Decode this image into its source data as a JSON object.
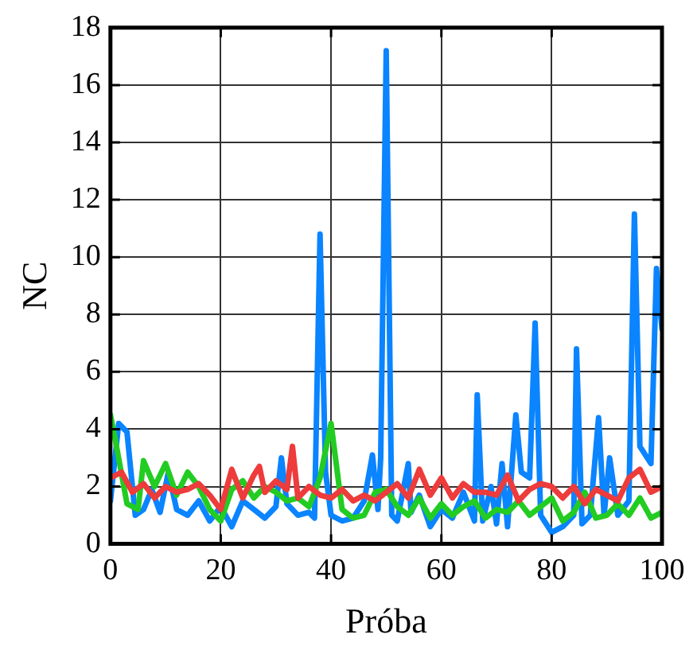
{
  "chart_data": {
    "type": "line",
    "xlabel": "Próba",
    "ylabel": "NC",
    "xlim": [
      0,
      100
    ],
    "ylim": [
      0,
      18
    ],
    "xticks": [
      0,
      20,
      40,
      60,
      80,
      100
    ],
    "yticks": [
      0,
      2,
      4,
      6,
      8,
      10,
      12,
      14,
      16,
      18
    ],
    "grid": true,
    "legend": false,
    "marker": "none",
    "line_style": "solid",
    "series": [
      {
        "color": "#ee3b3b",
        "x": [
          0,
          2,
          4,
          6,
          8,
          10,
          12,
          14,
          16,
          18,
          20,
          22,
          24,
          26,
          27,
          28,
          30,
          32,
          33,
          34,
          36,
          38,
          40,
          42,
          44,
          46,
          48,
          50,
          52,
          54,
          56,
          58,
          60,
          62,
          64,
          66,
          68,
          70,
          72,
          74,
          76,
          78,
          80,
          82,
          84,
          86,
          88,
          90,
          92,
          94,
          96,
          98,
          100
        ],
        "values": [
          2.3,
          2.5,
          1.8,
          2.1,
          1.6,
          2.0,
          1.8,
          1.9,
          2.1,
          1.7,
          1.2,
          2.6,
          1.6,
          2.4,
          2.7,
          1.8,
          2.2,
          1.9,
          3.4,
          1.6,
          2.0,
          1.7,
          1.6,
          1.9,
          1.5,
          1.7,
          1.5,
          1.8,
          2.1,
          1.6,
          2.6,
          1.7,
          2.3,
          1.6,
          2.1,
          1.8,
          1.8,
          1.7,
          2.4,
          1.5,
          1.9,
          2.1,
          2.0,
          1.6,
          2.0,
          1.4,
          1.9,
          1.7,
          1.5,
          2.3,
          2.6,
          1.8,
          2.0
        ]
      },
      {
        "color": "#22cc22",
        "x": [
          0,
          1,
          3,
          5,
          6,
          8,
          10,
          12,
          14,
          16,
          18,
          20,
          22,
          24,
          26,
          28,
          30,
          32,
          34,
          36,
          38,
          40,
          42,
          44,
          46,
          48,
          50,
          52,
          54,
          56,
          58,
          60,
          62,
          64,
          66,
          68,
          70,
          72,
          74,
          76,
          78,
          80,
          82,
          84,
          86,
          88,
          90,
          92,
          94,
          96,
          98,
          100
        ],
        "values": [
          4.5,
          3.5,
          1.4,
          1.2,
          2.9,
          2.0,
          2.8,
          1.7,
          2.5,
          2.0,
          1.2,
          0.8,
          1.9,
          2.2,
          1.6,
          2.0,
          1.8,
          1.5,
          1.6,
          1.3,
          2.3,
          4.2,
          1.2,
          0.9,
          1.0,
          1.8,
          1.9,
          1.3,
          1.0,
          1.6,
          0.9,
          1.4,
          1.0,
          1.3,
          1.5,
          0.9,
          1.2,
          1.1,
          1.5,
          1.0,
          1.3,
          1.6,
          0.8,
          1.1,
          1.8,
          0.9,
          1.0,
          1.4,
          1.0,
          1.6,
          0.9,
          1.1
        ]
      },
      {
        "color": "#0a84ff",
        "x": [
          0,
          1.5,
          3,
          4.5,
          6,
          7.5,
          9,
          10.5,
          12,
          14,
          16,
          18,
          20,
          22,
          24,
          26,
          28,
          30,
          31,
          32,
          34,
          36,
          37,
          38,
          39,
          40,
          42,
          44,
          46,
          47.5,
          48.5,
          49,
          50,
          51,
          52,
          54,
          54.5,
          56,
          58,
          60,
          62,
          64,
          66,
          66.5,
          67.5,
          69,
          70,
          71,
          72,
          73.5,
          74.5,
          76,
          77,
          78,
          80,
          82,
          84,
          84.5,
          85.5,
          87,
          88.5,
          89.5,
          90.5,
          92,
          94,
          95,
          96,
          98,
          99,
          100
        ],
        "values": [
          1.5,
          4.2,
          3.9,
          1.0,
          1.2,
          1.9,
          1.1,
          2.5,
          1.2,
          1.0,
          1.5,
          0.8,
          1.3,
          0.6,
          1.5,
          1.2,
          0.9,
          1.3,
          3.0,
          1.4,
          1.0,
          1.1,
          0.9,
          10.8,
          2.5,
          1.0,
          0.8,
          0.9,
          1.5,
          3.1,
          1.2,
          3.0,
          17.2,
          1.0,
          0.8,
          2.8,
          1.1,
          1.7,
          0.6,
          1.2,
          0.9,
          1.8,
          0.8,
          5.2,
          0.8,
          2.0,
          0.7,
          2.8,
          0.6,
          4.5,
          2.5,
          2.3,
          7.7,
          1.0,
          0.4,
          0.6,
          1.0,
          6.8,
          0.7,
          1.0,
          4.4,
          1.0,
          3.0,
          1.0,
          1.5,
          11.5,
          3.4,
          2.8,
          9.6,
          7.5
        ]
      }
    ]
  }
}
